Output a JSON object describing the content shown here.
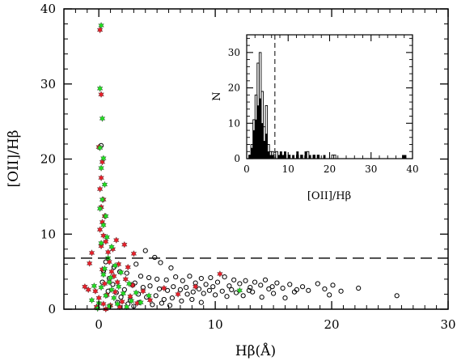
{
  "chart_data": [
    {
      "type": "scatter",
      "title": "",
      "xlabel": "Hβ(Å)",
      "ylabel": "[OII]/Hβ",
      "xlim": [
        -3,
        30
      ],
      "ylim": [
        0,
        40
      ],
      "xticks": [
        0,
        10,
        20,
        30
      ],
      "yticks": [
        0,
        10,
        20,
        30,
        40
      ],
      "grid": false,
      "threshold_line": {
        "y": 6.8,
        "style": "dashed"
      },
      "colors": {
        "open": "#000000",
        "red": "#e8202a",
        "green": "#22dd22"
      },
      "series": [
        {
          "marker": "open-circle",
          "points": [
            [
              0.2,
              21.8
            ],
            [
              4.0,
              7.8
            ],
            [
              4.8,
              6.9
            ],
            [
              3.2,
              6.0
            ],
            [
              5.3,
              6.2
            ],
            [
              6.2,
              5.5
            ],
            [
              1.8,
              5.0
            ],
            [
              2.4,
              4.8
            ],
            [
              3.6,
              4.4
            ],
            [
              4.3,
              4.2
            ],
            [
              5.0,
              4.0
            ],
            [
              5.8,
              3.9
            ],
            [
              6.6,
              4.3
            ],
            [
              7.2,
              3.8
            ],
            [
              7.8,
              4.4
            ],
            [
              8.3,
              3.5
            ],
            [
              8.8,
              4.1
            ],
            [
              9.2,
              3.3
            ],
            [
              9.6,
              4.2
            ],
            [
              10.2,
              3.6
            ],
            [
              10.8,
              4.3
            ],
            [
              11.2,
              3.1
            ],
            [
              11.6,
              3.9
            ],
            [
              12.1,
              3.4
            ],
            [
              12.6,
              3.8
            ],
            [
              13.0,
              2.9
            ],
            [
              13.4,
              3.6
            ],
            [
              13.9,
              3.2
            ],
            [
              14.3,
              3.9
            ],
            [
              14.9,
              3.0
            ],
            [
              15.3,
              3.5
            ],
            [
              15.8,
              2.8
            ],
            [
              16.4,
              3.3
            ],
            [
              17.0,
              2.6
            ],
            [
              17.5,
              3.0
            ],
            [
              18.0,
              2.5
            ],
            [
              18.8,
              3.4
            ],
            [
              19.4,
              2.7
            ],
            [
              20.1,
              3.2
            ],
            [
              20.8,
              2.4
            ],
            [
              22.3,
              2.8
            ],
            [
              25.6,
              1.8
            ],
            [
              3.1,
              3.5
            ],
            [
              3.8,
              2.9
            ],
            [
              4.4,
              3.1
            ],
            [
              5.2,
              2.7
            ],
            [
              5.9,
              2.5
            ],
            [
              6.4,
              3.0
            ],
            [
              7.0,
              2.6
            ],
            [
              7.5,
              2.9
            ],
            [
              8.1,
              2.3
            ],
            [
              8.6,
              2.7
            ],
            [
              9.0,
              2.1
            ],
            [
              9.5,
              2.5
            ],
            [
              10.0,
              1.9
            ],
            [
              10.6,
              2.4
            ],
            [
              11.0,
              1.7
            ],
            [
              11.8,
              2.2
            ],
            [
              12.4,
              1.8
            ],
            [
              13.2,
              2.3
            ],
            [
              14.0,
              1.6
            ],
            [
              15.0,
              2.1
            ],
            [
              16.0,
              1.5
            ],
            [
              3.4,
              2.0
            ],
            [
              4.1,
              1.6
            ],
            [
              4.9,
              1.8
            ],
            [
              5.6,
              1.3
            ],
            [
              6.3,
              1.5
            ],
            [
              7.1,
              1.1
            ],
            [
              8.0,
              1.3
            ],
            [
              8.8,
              0.9
            ],
            [
              2.7,
              1.2
            ],
            [
              3.5,
              0.9
            ],
            [
              4.6,
              0.6
            ],
            [
              5.4,
              0.8
            ],
            [
              6.1,
              0.5
            ],
            [
              2.2,
              2.6
            ],
            [
              2.9,
              3.2
            ],
            [
              1.5,
              2.2
            ],
            [
              1.2,
              3.3
            ],
            [
              0.9,
              4.1
            ],
            [
              1.9,
              1.6
            ],
            [
              2.5,
              0.7
            ],
            [
              3.0,
              0.4
            ],
            [
              0.6,
              6.3
            ],
            [
              1.3,
              5.6
            ],
            [
              0.4,
              5.1
            ],
            [
              0.3,
              3.6
            ],
            [
              0.8,
              2.4
            ],
            [
              1.6,
              0.9
            ],
            [
              7.6,
              2.0
            ],
            [
              9.8,
              3.0
            ],
            [
              11.4,
              2.6
            ],
            [
              12.9,
              2.5
            ],
            [
              14.6,
              2.7
            ],
            [
              16.8,
              2.3
            ],
            [
              19.8,
              1.9
            ]
          ]
        },
        {
          "marker": "red-star",
          "points": [
            [
              0.1,
              37.2
            ],
            [
              0.2,
              28.6
            ],
            [
              0.0,
              21.6
            ],
            [
              0.3,
              19.6
            ],
            [
              0.2,
              17.5
            ],
            [
              0.1,
              16.0
            ],
            [
              0.4,
              14.6
            ],
            [
              0.2,
              13.6
            ],
            [
              0.5,
              12.4
            ],
            [
              0.3,
              11.6
            ],
            [
              0.1,
              10.6
            ],
            [
              0.4,
              9.8
            ],
            [
              0.6,
              9.0
            ],
            [
              0.2,
              8.4
            ],
            [
              -0.6,
              7.5
            ],
            [
              0.8,
              7.6
            ],
            [
              1.5,
              9.2
            ],
            [
              1.2,
              8.0
            ],
            [
              2.2,
              8.6
            ],
            [
              3.0,
              7.4
            ],
            [
              -0.8,
              6.1
            ],
            [
              0.9,
              6.3
            ],
            [
              1.7,
              6.0
            ],
            [
              2.5,
              5.6
            ],
            [
              0.3,
              5.3
            ],
            [
              1.1,
              5.0
            ],
            [
              -1.2,
              3.0
            ],
            [
              -0.9,
              2.6
            ],
            [
              -0.3,
              2.4
            ],
            [
              0.5,
              3.4
            ],
            [
              1.6,
              3.6
            ],
            [
              2.3,
              4.0
            ],
            [
              2.9,
              3.2
            ],
            [
              0.0,
              1.5
            ],
            [
              0.7,
              1.9
            ],
            [
              1.4,
              2.3
            ],
            [
              2.0,
              1.0
            ],
            [
              2.7,
              1.7
            ],
            [
              3.3,
              0.8
            ],
            [
              -0.2,
              0.3
            ],
            [
              0.4,
              0.7
            ],
            [
              1.0,
              0.5
            ],
            [
              1.8,
              0.3
            ],
            [
              3.8,
              2.4
            ],
            [
              5.6,
              2.8
            ],
            [
              6.8,
              2.0
            ],
            [
              4.4,
              1.2
            ],
            [
              10.4,
              4.7
            ],
            [
              8.3,
              3.0
            ],
            [
              1.3,
              4.4
            ],
            [
              0.6,
              0.0
            ]
          ]
        },
        {
          "marker": "green-star",
          "points": [
            [
              0.2,
              37.8
            ],
            [
              0.1,
              29.4
            ],
            [
              0.3,
              25.4
            ],
            [
              0.1,
              21.5
            ],
            [
              0.4,
              20.1
            ],
            [
              0.2,
              18.8
            ],
            [
              0.5,
              16.6
            ],
            [
              0.3,
              14.6
            ],
            [
              0.1,
              13.4
            ],
            [
              0.6,
              12.4
            ],
            [
              0.4,
              11.2
            ],
            [
              0.7,
              9.6
            ],
            [
              0.2,
              8.8
            ],
            [
              1.1,
              8.3
            ],
            [
              0.8,
              6.8
            ],
            [
              1.4,
              5.8
            ],
            [
              0.4,
              4.6
            ],
            [
              1.0,
              4.2
            ],
            [
              -0.4,
              3.1
            ],
            [
              0.2,
              2.9
            ],
            [
              0.9,
              3.6
            ],
            [
              1.7,
              3.0
            ],
            [
              2.6,
              3.4
            ],
            [
              3.2,
              2.2
            ],
            [
              0.6,
              1.8
            ],
            [
              1.3,
              1.5
            ],
            [
              2.1,
              2.1
            ],
            [
              2.8,
              1.1
            ],
            [
              0.0,
              0.8
            ],
            [
              0.9,
              0.4
            ],
            [
              1.6,
              0.7
            ],
            [
              2.4,
              0.3
            ],
            [
              -0.6,
              1.2
            ],
            [
              3.6,
              0.9
            ],
            [
              4.3,
              1.8
            ],
            [
              12.1,
              2.5
            ],
            [
              1.9,
              4.9
            ],
            [
              0.5,
              5.4
            ],
            [
              -0.1,
              0.1
            ],
            [
              1.1,
              2.6
            ]
          ]
        }
      ]
    },
    {
      "type": "bar",
      "title": "",
      "xlabel": "[OII]/Hβ",
      "ylabel": "N",
      "xlim": [
        0,
        40
      ],
      "ylim": [
        0,
        35
      ],
      "xticks": [
        0,
        10,
        20,
        30,
        40
      ],
      "yticks": [
        0,
        10,
        20,
        30
      ],
      "threshold_line": {
        "x": 6.8,
        "style": "dashed"
      },
      "bin_width": 0.5,
      "series": [
        {
          "style": "open",
          "bins": [
            [
              0.5,
              1
            ],
            [
              1.0,
              4
            ],
            [
              1.5,
              11
            ],
            [
              2.0,
              18
            ],
            [
              2.5,
              27
            ],
            [
              3.0,
              30
            ],
            [
              3.5,
              19
            ],
            [
              4.0,
              9
            ],
            [
              4.5,
              15
            ],
            [
              5.0,
              4
            ],
            [
              5.5,
              2
            ],
            [
              6.0,
              2
            ],
            [
              6.5,
              1
            ],
            [
              7.0,
              2
            ],
            [
              8.0,
              1
            ],
            [
              9.0,
              1
            ],
            [
              10.0,
              1
            ],
            [
              12.0,
              1
            ],
            [
              13.0,
              1
            ],
            [
              14.5,
              2
            ],
            [
              16.0,
              1
            ],
            [
              17.0,
              1
            ],
            [
              20.5,
              1
            ],
            [
              21.0,
              1
            ]
          ]
        },
        {
          "style": "filled",
          "bins": [
            [
              0.5,
              1
            ],
            [
              1.0,
              3
            ],
            [
              1.5,
              8
            ],
            [
              2.0,
              11
            ],
            [
              2.5,
              15
            ],
            [
              3.0,
              17
            ],
            [
              3.5,
              10
            ],
            [
              4.0,
              5
            ],
            [
              4.5,
              7
            ],
            [
              5.0,
              2
            ],
            [
              5.5,
              1
            ],
            [
              6.0,
              1
            ],
            [
              7.5,
              1
            ],
            [
              8.0,
              2
            ],
            [
              8.5,
              1
            ],
            [
              9.0,
              2
            ],
            [
              10.0,
              1
            ],
            [
              11.0,
              1
            ],
            [
              12.0,
              2
            ],
            [
              13.0,
              1
            ],
            [
              14.0,
              2
            ],
            [
              15.0,
              1
            ],
            [
              16.0,
              1
            ],
            [
              17.0,
              1
            ],
            [
              18.5,
              1
            ],
            [
              37.5,
              1
            ],
            [
              38.0,
              1
            ]
          ]
        }
      ]
    }
  ]
}
